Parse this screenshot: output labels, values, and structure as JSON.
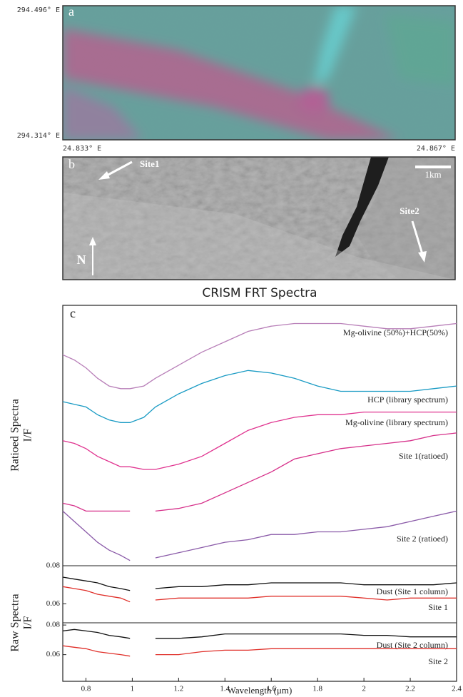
{
  "panel_a": {
    "label": "a",
    "lat_top": "294.496° E",
    "lat_bottom": "294.314° E",
    "lon_left": "24.833° E",
    "lon_right": "24.867° E"
  },
  "panel_b": {
    "label": "b",
    "site1": "Site1",
    "site2": "Site2",
    "scale": "1km",
    "north": "N"
  },
  "chart_data": [
    {
      "type": "line",
      "title": "CRISM FRT Spectra",
      "panel_label": "c",
      "ylabel": [
        "Ratioed Spectra",
        "I/F"
      ],
      "x": [
        0.7,
        0.75,
        0.8,
        0.85,
        0.9,
        0.95,
        0.99,
        1.05,
        1.1,
        1.2,
        1.3,
        1.4,
        1.5,
        1.6,
        1.7,
        1.8,
        1.9,
        2.0,
        2.1,
        2.2,
        2.3,
        2.4
      ],
      "xlim": [
        0.7,
        2.4
      ],
      "ylim": [
        0,
        1
      ],
      "series": [
        {
          "name": "Mg-olivine (50%)+HCP(50%)",
          "color": "#b87fb8",
          "values": [
            0.81,
            0.79,
            0.76,
            0.72,
            0.69,
            0.68,
            0.68,
            0.69,
            0.72,
            0.77,
            0.82,
            0.86,
            0.9,
            0.92,
            0.93,
            0.93,
            0.93,
            0.92,
            0.91,
            0.91,
            0.92,
            0.93
          ]
        },
        {
          "name": "HCP (library spectrum)",
          "color": "#1a9bc4",
          "values": [
            0.63,
            0.62,
            0.61,
            0.58,
            0.56,
            0.55,
            0.55,
            0.57,
            0.61,
            0.66,
            0.7,
            0.73,
            0.75,
            0.74,
            0.72,
            0.69,
            0.67,
            0.67,
            0.67,
            0.67,
            0.68,
            0.69
          ]
        },
        {
          "name": "Mg-olivine  (library spectrum)",
          "color": "#e0338f",
          "values": [
            0.48,
            0.47,
            0.45,
            0.42,
            0.4,
            0.38,
            0.38,
            0.37,
            0.37,
            0.39,
            0.42,
            0.47,
            0.52,
            0.55,
            0.57,
            0.58,
            0.58,
            0.59,
            0.59,
            0.59,
            0.59,
            0.59
          ]
        },
        {
          "name": "Site 1(ratioed)",
          "color": "#d6308a",
          "values": [
            0.24,
            0.23,
            0.21,
            0.21,
            0.21,
            0.21,
            0.21,
            null,
            0.21,
            0.22,
            0.24,
            0.28,
            0.32,
            0.36,
            0.41,
            0.43,
            0.45,
            0.46,
            0.47,
            0.48,
            0.5,
            0.51
          ]
        },
        {
          "name": "Site 2 (ratioed)",
          "color": "#8a5aa8",
          "values": [
            0.21,
            0.17,
            0.13,
            0.09,
            0.06,
            0.04,
            0.02,
            null,
            0.03,
            0.05,
            0.07,
            0.09,
            0.1,
            0.12,
            0.12,
            0.13,
            0.13,
            0.14,
            0.15,
            0.17,
            0.19,
            0.21
          ]
        }
      ]
    },
    {
      "type": "line",
      "ylabel": [
        "Raw Spectra",
        "I/F"
      ],
      "x": [
        0.7,
        0.75,
        0.8,
        0.85,
        0.9,
        0.95,
        0.99,
        1.05,
        1.1,
        1.2,
        1.3,
        1.4,
        1.5,
        1.6,
        1.7,
        1.8,
        1.9,
        2.0,
        2.1,
        2.2,
        2.3,
        2.4
      ],
      "xlim": [
        0.7,
        2.4
      ],
      "ylim": [
        0.05,
        0.08
      ],
      "yticks": [
        0.06,
        0.08
      ],
      "series": [
        {
          "name": "Dust (Site 1 column)",
          "color": "#111111",
          "values": [
            0.074,
            0.073,
            0.072,
            0.071,
            0.069,
            0.068,
            0.067,
            null,
            0.068,
            0.069,
            0.069,
            0.07,
            0.07,
            0.071,
            0.071,
            0.071,
            0.071,
            0.07,
            0.07,
            0.07,
            0.07,
            0.071
          ]
        },
        {
          "name": "Site 1",
          "color": "#e0302a",
          "values": [
            0.069,
            0.068,
            0.067,
            0.065,
            0.064,
            0.063,
            0.061,
            null,
            0.062,
            0.063,
            0.063,
            0.063,
            0.063,
            0.064,
            0.064,
            0.064,
            0.064,
            0.063,
            0.062,
            0.063,
            0.063,
            0.063
          ]
        }
      ]
    },
    {
      "type": "line",
      "xlabel": "Wavelength (μm)",
      "x": [
        0.7,
        0.75,
        0.8,
        0.85,
        0.9,
        0.95,
        0.99,
        1.05,
        1.1,
        1.2,
        1.3,
        1.4,
        1.5,
        1.6,
        1.7,
        1.8,
        1.9,
        2.0,
        2.1,
        2.2,
        2.3,
        2.4
      ],
      "xlim": [
        0.7,
        2.4
      ],
      "ylim": [
        0.042,
        0.0815
      ],
      "yticks": [
        0.06,
        0.08
      ],
      "xticks": [
        0.8,
        1,
        1.2,
        1.4,
        1.6,
        1.8,
        2,
        2.2,
        2.4
      ],
      "series": [
        {
          "name": "Dust (Site 2 column)",
          "color": "#111111",
          "values": [
            0.076,
            0.077,
            0.076,
            0.075,
            0.073,
            0.072,
            0.071,
            null,
            0.071,
            0.071,
            0.072,
            0.074,
            0.074,
            0.074,
            0.074,
            0.074,
            0.074,
            0.073,
            0.073,
            0.072,
            0.072,
            0.072
          ]
        },
        {
          "name": "Site 2",
          "color": "#e0302a",
          "values": [
            0.066,
            0.065,
            0.064,
            0.062,
            0.061,
            0.06,
            0.059,
            null,
            0.06,
            0.06,
            0.062,
            0.063,
            0.063,
            0.064,
            0.064,
            0.064,
            0.064,
            0.064,
            0.064,
            0.064,
            0.064,
            0.064
          ]
        }
      ]
    }
  ]
}
